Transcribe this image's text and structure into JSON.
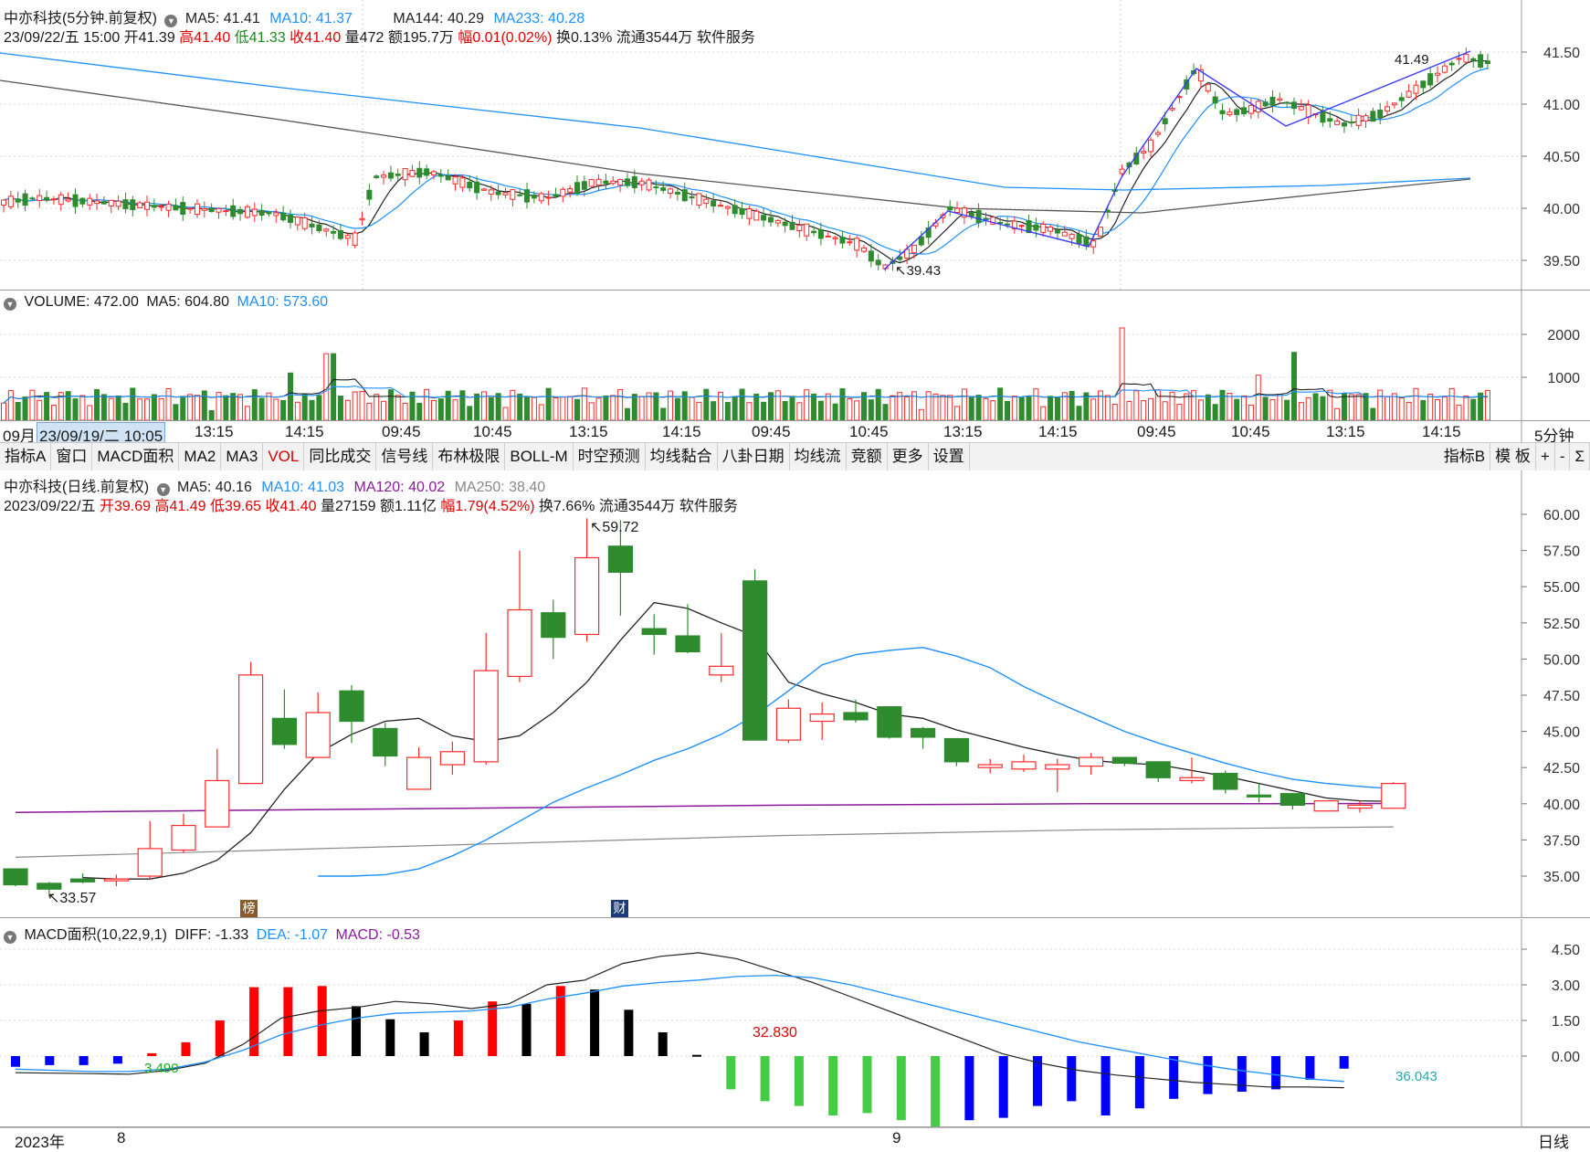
{
  "header_5min": {
    "title": "中亦科技(5分钟.前复权)",
    "ma5": "MA5: 41.41",
    "ma10": "MA10: 41.37",
    "ma144": "MA144: 40.29",
    "ma233": "MA233: 40.28"
  },
  "info_5min": {
    "date": "23/09/22/五 15:00",
    "open": "开41.39",
    "high": "高41.40",
    "low": "低41.33",
    "close": "收41.40",
    "vol": "量472",
    "amount": "额195.7万",
    "change": "幅0.01(0.02%)",
    "turnover": "换0.13%",
    "float": "流通3544万",
    "industry": "软件服务"
  },
  "annot_5min": {
    "low": "39.43",
    "high": "41.49"
  },
  "price_axis_5min": [
    "41.50",
    "41.00",
    "40.50",
    "40.00",
    "39.50"
  ],
  "vol_header": {
    "label": "VOLUME: 472.00",
    "ma5": "MA5: 604.80",
    "ma10": "MA10: 573.60"
  },
  "vol_axis": [
    "2000",
    "1000"
  ],
  "time_axis_5min": {
    "first_label": "09月",
    "cursor": "23/09/19/二 10:05",
    "labels": [
      "13:15",
      "14:15",
      "09:45",
      "10:45",
      "13:15",
      "14:15",
      "09:45",
      "10:45",
      "13:15",
      "14:15",
      "09:45",
      "10:45",
      "13:15",
      "14:15"
    ],
    "period": "5分钟"
  },
  "toolbar": {
    "tabs": [
      "指标A",
      "窗口",
      "MACD面积",
      "MA2",
      "MA3",
      "VOL",
      "同比成交",
      "信号线",
      "布林极限",
      "BOLL-M",
      "时空预测",
      "均线黏合",
      "八卦日期",
      "均线流",
      "竞额",
      "更多",
      "设置"
    ],
    "right": [
      "指标B",
      "模 板",
      "+",
      "-",
      "Σ"
    ]
  },
  "header_daily": {
    "title": "中亦科技(日线.前复权)",
    "ma5": "MA5: 40.16",
    "ma10": "MA10: 41.03",
    "ma120": "MA120: 40.02",
    "ma250": "MA250: 38.40"
  },
  "info_daily": {
    "date": "2023/09/22/五",
    "open": "开39.69",
    "high": "高41.49",
    "low": "低39.65",
    "close": "收41.40",
    "vol": "量27159",
    "amount": "额1.11亿",
    "change": "幅1.79(4.52%)",
    "turnover": "换7.66%",
    "float": "流通3544万",
    "industry": "软件服务"
  },
  "annot_daily": {
    "high": "59.72",
    "low": "33.57",
    "badge1": "榜",
    "badge2": "财"
  },
  "price_axis_daily": [
    "60.00",
    "57.50",
    "55.00",
    "52.50",
    "50.00",
    "47.50",
    "45.00",
    "42.50",
    "40.00",
    "37.50",
    "35.00"
  ],
  "macd_header": {
    "label": "MACD面积(10,22,9,1)",
    "diff": "DIFF: -1.33",
    "dea": "DEA: -1.07",
    "macd": "MACD: -0.53"
  },
  "macd_axis": [
    "4.50",
    "3.00",
    "1.50",
    "0.00"
  ],
  "macd_annot": {
    "a": "3.490",
    "b": "32.830",
    "c": "36.043"
  },
  "date_axis": {
    "year": "2023年",
    "m1": "8",
    "m2": "9",
    "period": "日线"
  },
  "colors": {
    "up": "#ff2a2a",
    "down": "#2e8b2e",
    "ma_black": "#222222",
    "ma_blue": "#1e90ff",
    "ma_purple": "#8b1a9b",
    "ma_gray": "#8a8a8a",
    "macd_green": "#44cc44",
    "macd_blue": "#0000ff",
    "macd_red": "#ff0000",
    "macd_black": "#000000",
    "cursor_bg": "#cfe3f5"
  },
  "chart_data": [
    {
      "type": "candlestick",
      "title": "中亦科技(日线.前复权)",
      "ylim": [
        33.0,
        60.5
      ],
      "ohlc": [
        [
          35.5,
          35.5,
          34.3,
          34.4
        ],
        [
          34.5,
          34.6,
          33.57,
          34.1
        ],
        [
          34.8,
          35.2,
          34.5,
          34.6
        ],
        [
          34.8,
          35.1,
          34.3,
          34.8
        ],
        [
          35.0,
          38.8,
          34.8,
          36.9
        ],
        [
          36.8,
          39.3,
          36.6,
          38.5
        ],
        [
          38.4,
          43.8,
          38.4,
          41.6
        ],
        [
          41.4,
          49.8,
          41.4,
          48.9
        ],
        [
          45.9,
          47.9,
          43.8,
          44.1
        ],
        [
          43.2,
          47.7,
          43.2,
          46.3
        ],
        [
          47.8,
          48.2,
          44.2,
          45.7
        ],
        [
          45.2,
          45.6,
          42.6,
          43.3
        ],
        [
          41.0,
          43.9,
          41.0,
          43.2
        ],
        [
          42.7,
          44.3,
          42.0,
          43.6
        ],
        [
          42.9,
          51.8,
          42.7,
          49.2
        ],
        [
          48.8,
          57.5,
          48.4,
          53.4
        ],
        [
          53.2,
          54.1,
          50.0,
          51.5
        ],
        [
          51.7,
          59.72,
          51.2,
          57.0
        ],
        [
          57.8,
          59.6,
          53.0,
          56.0
        ],
        [
          52.1,
          53.1,
          50.3,
          51.7
        ],
        [
          51.6,
          53.8,
          50.4,
          50.5
        ],
        [
          48.9,
          51.8,
          48.4,
          49.5
        ],
        [
          55.4,
          56.2,
          44.4,
          44.4
        ],
        [
          44.4,
          47.2,
          44.2,
          46.6
        ],
        [
          45.7,
          47.0,
          44.4,
          46.2
        ],
        [
          46.3,
          47.2,
          45.6,
          45.8
        ],
        [
          46.7,
          46.7,
          44.5,
          44.6
        ],
        [
          45.2,
          45.3,
          43.8,
          44.6
        ],
        [
          44.5,
          44.5,
          42.6,
          42.9
        ],
        [
          42.5,
          43.1,
          42.1,
          42.7
        ],
        [
          42.4,
          43.4,
          42.2,
          42.9
        ],
        [
          42.4,
          43.1,
          40.8,
          42.7
        ],
        [
          42.6,
          43.5,
          42.0,
          43.2
        ],
        [
          43.2,
          43.2,
          42.6,
          42.8
        ],
        [
          42.9,
          42.9,
          41.5,
          41.8
        ],
        [
          41.6,
          43.2,
          41.4,
          41.8
        ],
        [
          42.1,
          42.3,
          40.7,
          41.0
        ],
        [
          40.6,
          41.4,
          40.1,
          40.5
        ],
        [
          40.7,
          40.7,
          39.6,
          39.9
        ],
        [
          39.5,
          40.2,
          39.5,
          40.2
        ],
        [
          39.7,
          40.2,
          39.4,
          39.9
        ],
        [
          39.69,
          41.49,
          39.65,
          41.4
        ]
      ],
      "ma5": [
        34.9,
        34.8,
        34.8,
        35.2,
        36.1,
        38.0,
        41.0,
        43.5,
        44.8,
        45.7,
        45.9,
        44.7,
        44.3,
        44.7,
        46.3,
        48.4,
        51.3,
        53.9,
        53.5,
        52.5,
        51.6,
        48.4,
        47.6,
        47.0,
        46.2,
        45.9,
        45.1,
        44.5,
        43.9,
        43.4,
        43.0,
        42.8,
        42.7,
        42.3,
        41.9,
        41.4,
        40.9,
        40.4,
        40.2,
        40.16
      ],
      "ma10": [
        35.0,
        35.0,
        35.1,
        35.5,
        36.4,
        37.5,
        38.8,
        40.1,
        41.1,
        42.0,
        43.0,
        43.8,
        44.8,
        46.1,
        47.8,
        49.6,
        50.3,
        50.6,
        50.8,
        50.2,
        49.4,
        48.1,
        47.0,
        46.0,
        45.0,
        44.2,
        43.5,
        42.8,
        42.2,
        41.7,
        41.4,
        41.2,
        41.03
      ],
      "ma120": [
        39.4,
        39.5,
        39.6,
        39.7,
        39.8,
        39.9,
        39.95,
        40.0,
        40.0,
        40.02
      ],
      "ma250": [
        36.3,
        36.6,
        36.9,
        37.2,
        37.5,
        37.8,
        38.0,
        38.2,
        38.3,
        38.4
      ]
    },
    {
      "type": "bar",
      "title": "MACD面积(10,22,9,1)",
      "ylim": [
        -3.7,
        5.0
      ],
      "values": [
        -0.45,
        -0.38,
        -0.38,
        -0.32,
        0.12,
        0.58,
        1.5,
        2.9,
        2.9,
        2.95,
        2.1,
        1.55,
        1.0,
        1.5,
        2.3,
        2.2,
        2.95,
        2.8,
        1.95,
        1.0,
        0.05,
        -1.4,
        -1.9,
        -2.1,
        -2.5,
        -2.4,
        -2.7,
        -3.0,
        -2.7,
        -2.6,
        -2.1,
        -1.9,
        -2.5,
        -2.2,
        -1.8,
        -1.6,
        -1.5,
        -1.4,
        -1.0,
        -0.53
      ],
      "diff": [
        -0.7,
        -0.72,
        -0.74,
        -0.76,
        -0.6,
        -0.3,
        0.5,
        1.6,
        1.9,
        2.05,
        2.3,
        2.2,
        2.0,
        2.2,
        3.0,
        3.2,
        3.9,
        4.2,
        4.35,
        4.1,
        3.6,
        3.1,
        2.5,
        1.9,
        1.3,
        0.7,
        0.1,
        -0.3,
        -0.6,
        -0.8,
        -0.95,
        -1.1,
        -1.2,
        -1.3,
        -1.3,
        -1.33
      ],
      "dea": [
        -0.55,
        -0.6,
        -0.65,
        -0.65,
        -0.55,
        -0.25,
        0.25,
        0.9,
        1.3,
        1.6,
        1.8,
        1.85,
        1.9,
        2.05,
        2.4,
        2.65,
        2.95,
        3.1,
        3.2,
        3.35,
        3.4,
        3.3,
        3.0,
        2.6,
        2.2,
        1.8,
        1.4,
        1.0,
        0.6,
        0.3,
        0.0,
        -0.3,
        -0.55,
        -0.75,
        -0.95,
        -1.07
      ]
    }
  ]
}
